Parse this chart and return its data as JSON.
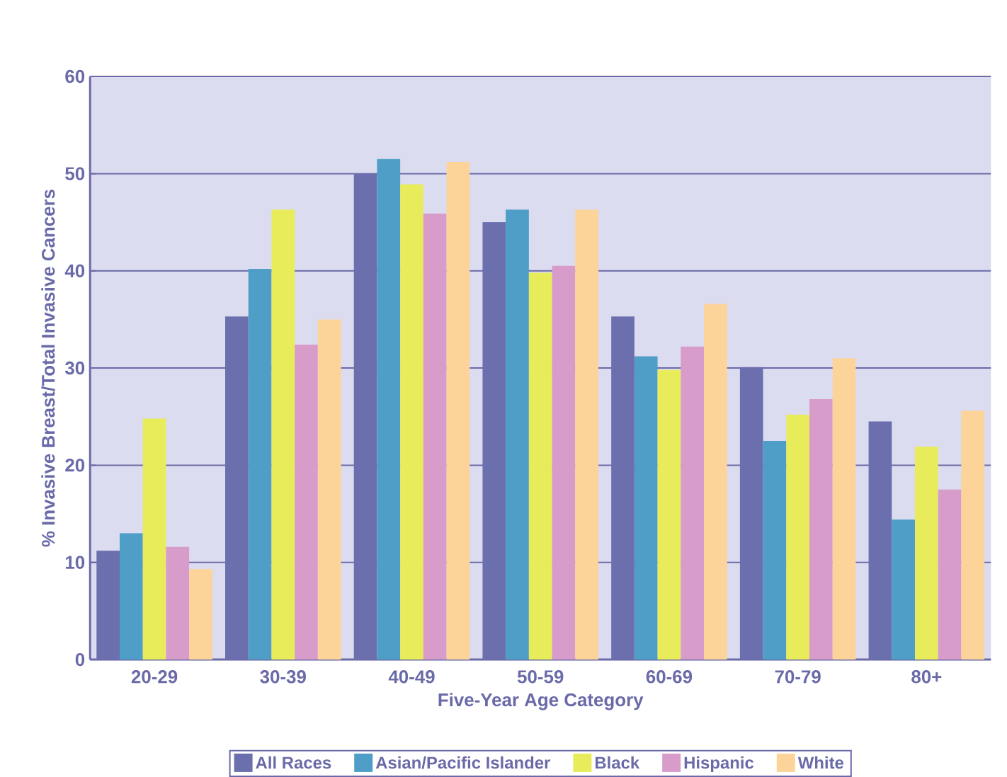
{
  "chart_data": {
    "type": "bar",
    "xlabel": "Five-Year Age Category",
    "ylabel": "% Invasive Breast/Total Invasive Cancers",
    "categories": [
      "20-29",
      "30-39",
      "40-49",
      "50-59",
      "60-69",
      "70-79",
      "80+"
    ],
    "series": [
      {
        "name": "All Races",
        "color": "#6b6fae",
        "values": [
          11.2,
          35.3,
          50.0,
          45.0,
          35.3,
          30.1,
          24.5
        ]
      },
      {
        "name": "Asian/Pacific Islander",
        "color": "#4e9ec8",
        "values": [
          13.0,
          40.2,
          51.5,
          46.3,
          31.2,
          22.5,
          14.4
        ]
      },
      {
        "name": "Black",
        "color": "#e8ec5a",
        "values": [
          24.8,
          46.3,
          48.9,
          39.8,
          29.8,
          25.2,
          21.9
        ]
      },
      {
        "name": "Hispanic",
        "color": "#d89ccb",
        "values": [
          11.6,
          32.4,
          45.9,
          40.5,
          32.2,
          26.8,
          17.5
        ]
      },
      {
        "name": "White",
        "color": "#fcd49a",
        "values": [
          9.3,
          35.0,
          51.2,
          46.3,
          36.6,
          31.0,
          25.6
        ]
      }
    ],
    "ylim": [
      0,
      60
    ],
    "yticks": [
      0,
      10,
      20,
      30,
      40,
      50,
      60
    ],
    "grid": "y",
    "legend": "bottom"
  }
}
